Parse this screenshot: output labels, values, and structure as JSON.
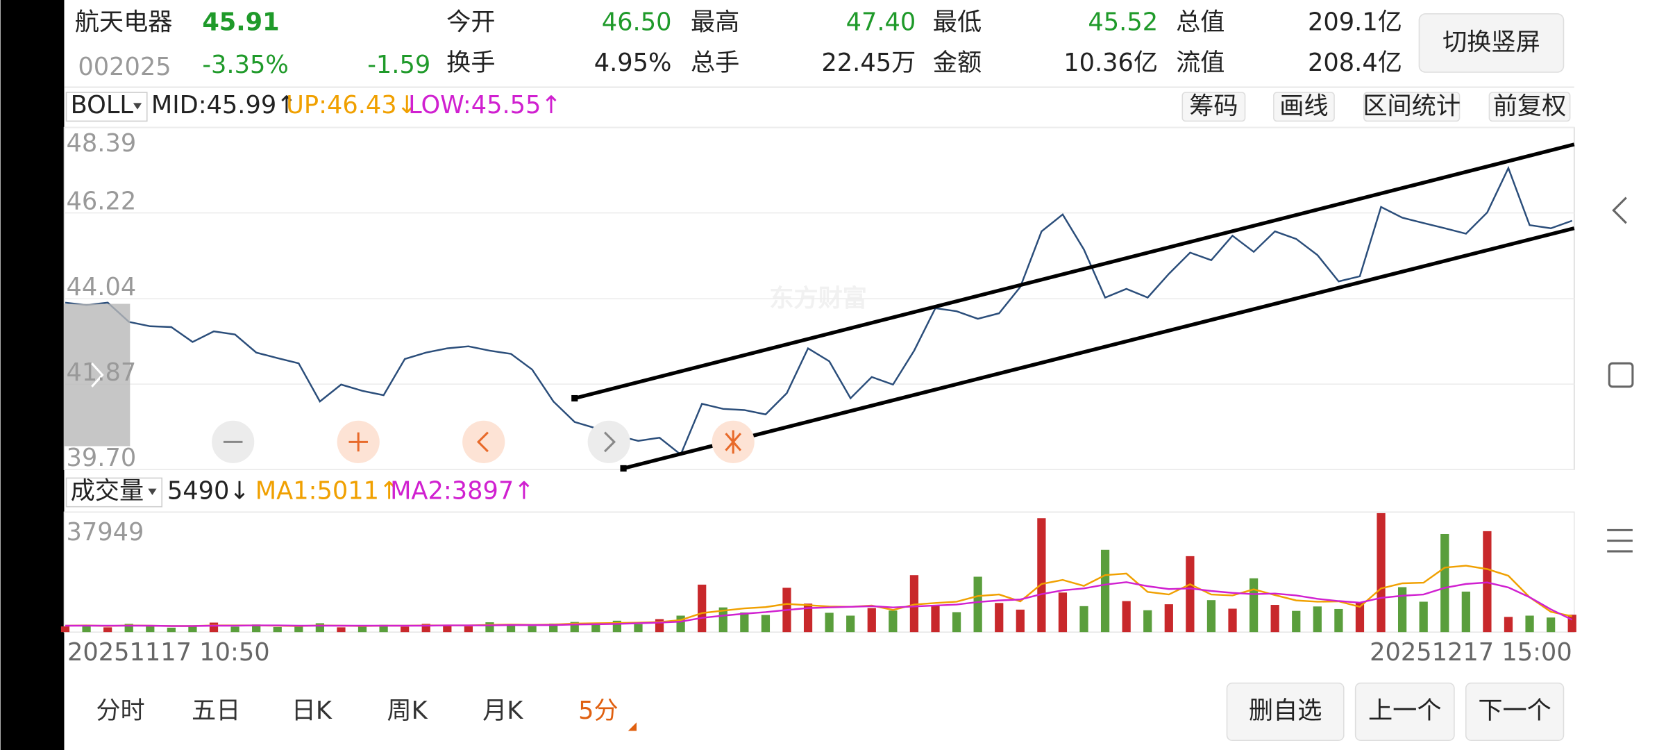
{
  "header": {
    "name": "航天电器",
    "price": "45.91",
    "code": "002025",
    "change_pct": "-3.35%",
    "change": "-1.59",
    "up_color": "#1f9a2a",
    "stats": [
      {
        "label": "今开",
        "value": "46.50",
        "color": "#1f9a2a"
      },
      {
        "label": "最高",
        "value": "47.40",
        "color": "#1f9a2a"
      },
      {
        "label": "最低",
        "value": "45.52",
        "color": "#1f9a2a"
      },
      {
        "label": "总值",
        "value": "209.1亿",
        "color": "#222222"
      },
      {
        "label": "换手",
        "value": "4.95%",
        "color": "#222222"
      },
      {
        "label": "总手",
        "value": "22.45万",
        "color": "#222222"
      },
      {
        "label": "金额",
        "value": "10.36亿",
        "color": "#222222"
      },
      {
        "label": "流值",
        "value": "208.4亿",
        "color": "#222222"
      }
    ],
    "button": "切换竖屏"
  },
  "toolbar": [
    "筹码",
    "画线",
    "区间统计",
    "前复权"
  ],
  "watermark": "东方财富",
  "tabs": [
    "分时",
    "五日",
    "日K",
    "周K",
    "月K",
    "5分"
  ],
  "active_tab": 5,
  "buttons": [
    "删自选",
    "上一个",
    "下一个"
  ],
  "chart_data": [
    {
      "type": "line",
      "indicator": "BOLL",
      "color": "#2a4d7a",
      "legend": [
        {
          "text": "MID:45.99↑",
          "color": "#222222"
        },
        {
          "text": "UP:46.43↓",
          "color": "#f0a000"
        },
        {
          "text": "LOW:45.55↑",
          "color": "#d020d0"
        }
      ],
      "values": [
        43.94,
        43.88,
        43.94,
        43.45,
        43.34,
        43.32,
        42.94,
        43.21,
        43.13,
        42.67,
        42.53,
        42.4,
        41.43,
        41.86,
        41.7,
        41.59,
        42.51,
        42.67,
        42.78,
        42.83,
        42.72,
        42.64,
        42.24,
        41.43,
        40.91,
        40.75,
        40.56,
        40.43,
        40.51,
        40.08,
        41.37,
        41.24,
        41.21,
        41.1,
        41.64,
        42.78,
        42.45,
        41.51,
        42.05,
        41.86,
        42.72,
        43.8,
        43.72,
        43.53,
        43.67,
        44.34,
        45.75,
        46.18,
        45.29,
        44.07,
        44.29,
        44.07,
        44.67,
        45.21,
        45.02,
        45.64,
        45.23,
        45.75,
        45.56,
        45.15,
        44.48,
        44.61,
        46.37,
        46.1,
        45.96,
        45.83,
        45.69,
        46.23,
        47.36,
        45.91,
        45.83,
        46.02
      ],
      "ylim": [
        39.7,
        48.39
      ],
      "yticks": [
        {
          "value": 39.7,
          "label": "39.70"
        },
        41.87,
        44.04,
        46.22,
        48.39
      ],
      "grid": true,
      "trend_lines": [
        {
          "x": [
            24,
            71.1
          ],
          "y": [
            41.51,
            47.96
          ]
        },
        {
          "x": [
            26.3,
            71.1
          ],
          "y": [
            39.73,
            45.83
          ]
        }
      ]
    },
    {
      "type": "bar",
      "indicator": "成交量",
      "up_color": "#c8282b",
      "down_color": "#5a9e3c",
      "legend": [
        {
          "text": "5490↓",
          "color": "#222222"
        },
        {
          "text": "MA1:5011↑",
          "color": "#f0a000"
        },
        {
          "text": "MA2:3897↑",
          "color": "#d020d0"
        }
      ],
      "categories": [
        "20251117 10:50",
        null,
        null,
        null,
        null,
        null,
        null,
        null,
        null,
        null,
        null,
        null,
        null,
        null,
        null,
        null,
        null,
        null,
        null,
        null,
        null,
        null,
        null,
        null,
        null,
        null,
        null,
        null,
        null,
        null,
        null,
        null,
        null,
        null,
        null,
        null,
        null,
        null,
        null,
        null,
        null,
        null,
        null,
        null,
        null,
        null,
        null,
        null,
        null,
        null,
        null,
        null,
        null,
        null,
        null,
        null,
        null,
        null,
        null,
        null,
        null,
        null,
        null,
        null,
        null,
        null,
        null,
        null,
        null,
        null,
        null,
        "20251217 15:00"
      ],
      "values": [
        1800,
        2200,
        1500,
        2600,
        1900,
        1400,
        2100,
        3000,
        1700,
        2400,
        1600,
        2000,
        2800,
        1500,
        1900,
        2300,
        1700,
        2600,
        2100,
        1800,
        3100,
        2400,
        1900,
        2700,
        3200,
        2800,
        3600,
        2500,
        4100,
        5200,
        15000,
        7800,
        6200,
        5400,
        14000,
        9000,
        6100,
        5200,
        7600,
        6800,
        18000,
        8400,
        6300,
        17500,
        9200,
        7100,
        36000,
        12500,
        8200,
        26000,
        9800,
        6900,
        8800,
        24000,
        10100,
        7400,
        17000,
        8600,
        6700,
        8100,
        7300,
        9400,
        37600,
        14200,
        9600,
        31000,
        12800,
        31900,
        4800,
        5200,
        4600,
        5490
      ],
      "ma_lines": [
        {
          "color": "#f0a000",
          "values": [
            2000,
            2100,
            1900,
            2100,
            2000,
            1900,
            1900,
            2100,
            2100,
            2100,
            2000,
            1900,
            2100,
            2000,
            1900,
            2000,
            2000,
            2100,
            2100,
            2100,
            2300,
            2400,
            2300,
            2400,
            2700,
            2800,
            2900,
            3000,
            3200,
            3800,
            6000,
            6800,
            7500,
            7900,
            8900,
            8500,
            8100,
            8000,
            8400,
            7000,
            8700,
            9200,
            9600,
            11400,
            11900,
            9700,
            15200,
            16500,
            14600,
            18000,
            18500,
            12700,
            11900,
            15100,
            11900,
            11600,
            13500,
            11700,
            10000,
            9600,
            9700,
            8000,
            13800,
            15400,
            15600,
            20400,
            21000,
            19900,
            17800,
            11000,
            6400,
            5011
          ]
        },
        {
          "color": "#d020d0",
          "values": [
            2000,
            2000,
            2000,
            2000,
            2000,
            1900,
            1900,
            2000,
            2000,
            2100,
            2100,
            2000,
            2000,
            2000,
            2000,
            2000,
            2000,
            2000,
            2100,
            2100,
            2100,
            2200,
            2200,
            2200,
            2400,
            2500,
            2600,
            2800,
            3000,
            3300,
            4500,
            5200,
            5800,
            6300,
            7000,
            7600,
            7800,
            8000,
            8200,
            7800,
            8100,
            8400,
            8700,
            9500,
            10000,
            10300,
            12000,
            13200,
            13800,
            15000,
            15800,
            14500,
            13600,
            13800,
            13000,
            12400,
            12000,
            12200,
            11600,
            10500,
            9800,
            9300,
            10800,
            11500,
            11900,
            14000,
            15200,
            15700,
            14100,
            11000,
            7200,
            3897
          ]
        }
      ],
      "ylim": [
        0,
        37949
      ],
      "yticks": [
        37949
      ]
    }
  ]
}
